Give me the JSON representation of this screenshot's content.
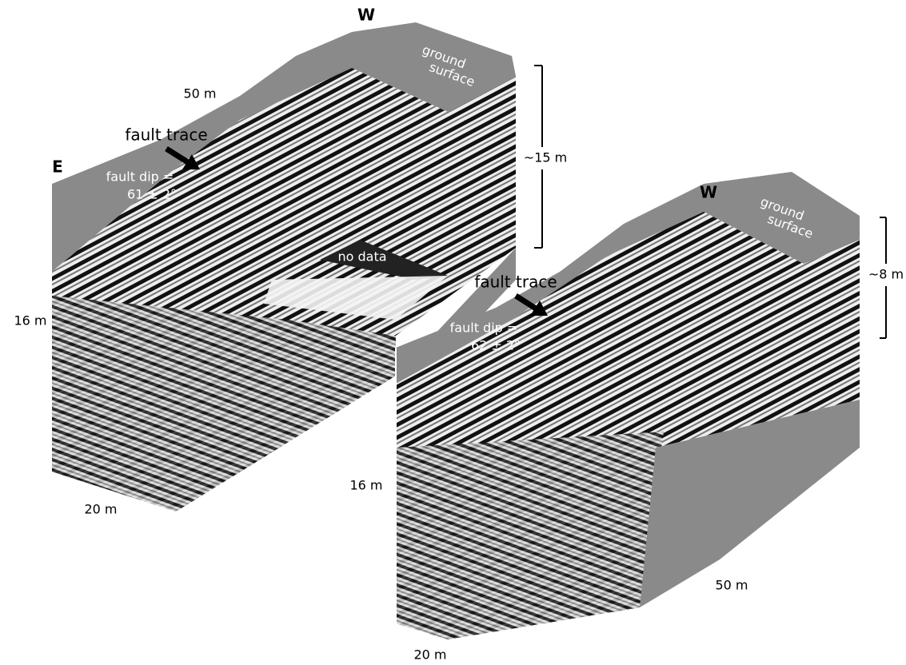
{
  "left": {
    "w": "W",
    "e": "E",
    "ground": [
      "ground",
      "surface"
    ],
    "top_scale": "50 m",
    "fault_trace": "fault trace",
    "fault_dip": [
      "fault dip =",
      "61 ± 2°"
    ],
    "height": "~15 m",
    "no_data": "no data",
    "depth": "16 m",
    "width": "20 m"
  },
  "right": {
    "w": "W",
    "ground": [
      "ground",
      "surface"
    ],
    "fault_trace": "fault trace",
    "fault_dip": [
      "fault dip =",
      "62 ± 2°"
    ],
    "height": "~8 m",
    "depth": "16 m",
    "length": "50 m",
    "width": "20 m"
  }
}
